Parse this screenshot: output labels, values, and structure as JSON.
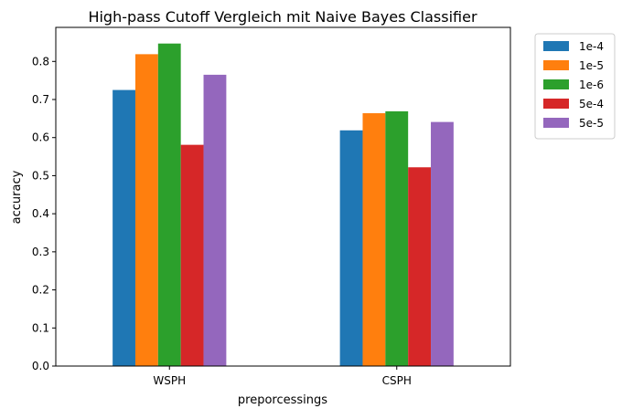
{
  "chart_data": {
    "type": "bar",
    "title": "High-pass Cutoff Vergleich mit Naive Bayes Classifier",
    "xlabel": "preporcessings",
    "ylabel": "accuracy",
    "categories": [
      "WSPH",
      "CSPH"
    ],
    "series": [
      {
        "name": "1e-4",
        "color": "#1f77b4",
        "values": [
          0.725,
          0.619
        ]
      },
      {
        "name": "1e-5",
        "color": "#ff7f0e",
        "values": [
          0.819,
          0.664
        ]
      },
      {
        "name": "1e-6",
        "color": "#2ca02c",
        "values": [
          0.847,
          0.669
        ]
      },
      {
        "name": "5e-4",
        "color": "#d62728",
        "values": [
          0.581,
          0.522
        ]
      },
      {
        "name": "5e-5",
        "color": "#9467bd",
        "values": [
          0.765,
          0.641
        ]
      }
    ],
    "ylim": [
      0,
      0.8894
    ],
    "yticks": [
      "0.0",
      "0.1",
      "0.2",
      "0.3",
      "0.4",
      "0.5",
      "0.6",
      "0.7",
      "0.8"
    ],
    "grid": false,
    "legend_position": "outside-upper-right"
  }
}
